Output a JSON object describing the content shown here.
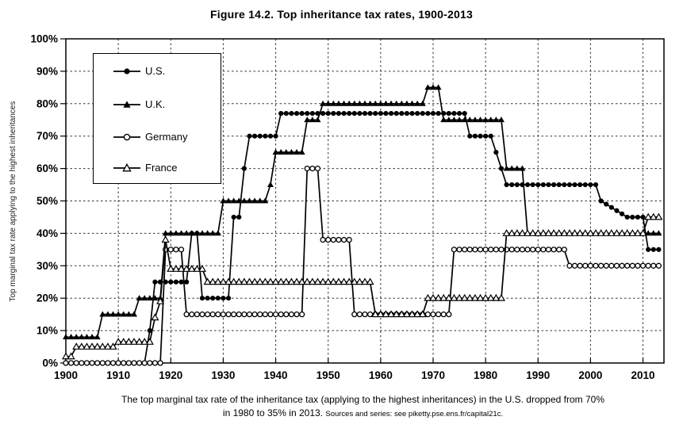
{
  "figure": {
    "title": "Figure 14.2. Top inheritance tax rates, 1900-2013",
    "y_axis_label": "Top marginal tax rate applying to the highest inheritances",
    "caption_line1": "The top marginal tax rate of the inheritance tax (applying to the highest inheritances) in the U.S. dropped from 70%",
    "caption_line2": "in 1980 to 35% in 2013.",
    "caption_source": "Sources and series: see piketty.pse.ens.fr/capital21c."
  },
  "legend": {
    "position": "upper-left",
    "items": [
      {
        "label": "U.S.",
        "marker": "filled-circle"
      },
      {
        "label": "U.K.",
        "marker": "filled-triangle"
      },
      {
        "label": "Germany",
        "marker": "open-circle"
      },
      {
        "label": "France",
        "marker": "open-triangle"
      }
    ]
  },
  "colors": {
    "series": "#000000",
    "grid": "#333333",
    "background": "#ffffff"
  },
  "chart_data": {
    "type": "line",
    "title": "Figure 14.2. Top inheritance tax rates, 1900-2013",
    "xlabel": "",
    "ylabel": "Top marginal tax rate applying to the highest inheritances",
    "x_range": [
      1900,
      2014
    ],
    "y_range": [
      0,
      100
    ],
    "x_ticks": [
      1900,
      1910,
      1920,
      1930,
      1940,
      1950,
      1960,
      1970,
      1980,
      1990,
      2000,
      2010
    ],
    "y_ticks": [
      0,
      10,
      20,
      30,
      40,
      50,
      60,
      70,
      80,
      90,
      100
    ],
    "y_tick_suffix": "%",
    "grid": "dashed horizontal and vertical",
    "series": [
      {
        "name": "U.S.",
        "marker": "filled-circle",
        "segments": [
          [
            1900,
            1915,
            0
          ],
          [
            1916,
            1916,
            10
          ],
          [
            1917,
            1923,
            25
          ],
          [
            1924,
            1925,
            40
          ],
          [
            1926,
            1931,
            20
          ],
          [
            1932,
            1933,
            45
          ],
          [
            1934,
            1934,
            60
          ],
          [
            1935,
            1940,
            70
          ],
          [
            1941,
            1976,
            77
          ],
          [
            1977,
            1981,
            70
          ],
          [
            1982,
            1982,
            65
          ],
          [
            1983,
            1983,
            60
          ],
          [
            1984,
            2001,
            55
          ],
          [
            2002,
            2002,
            50
          ],
          [
            2003,
            2003,
            49
          ],
          [
            2004,
            2004,
            48
          ],
          [
            2005,
            2005,
            47
          ],
          [
            2006,
            2006,
            46
          ],
          [
            2007,
            2010,
            45
          ],
          [
            2011,
            2013,
            35
          ]
        ]
      },
      {
        "name": "U.K.",
        "marker": "filled-triangle",
        "segments": [
          [
            1900,
            1906,
            8
          ],
          [
            1907,
            1913,
            15
          ],
          [
            1914,
            1918,
            20
          ],
          [
            1919,
            1929,
            40
          ],
          [
            1930,
            1938,
            50
          ],
          [
            1939,
            1939,
            55
          ],
          [
            1940,
            1945,
            65
          ],
          [
            1946,
            1948,
            75
          ],
          [
            1949,
            1968,
            80
          ],
          [
            1969,
            1971,
            85
          ],
          [
            1972,
            1983,
            75
          ],
          [
            1984,
            1987,
            60
          ],
          [
            1988,
            2013,
            40
          ]
        ]
      },
      {
        "name": "Germany",
        "marker": "open-circle",
        "segments": [
          [
            1900,
            1918,
            0
          ],
          [
            1919,
            1922,
            35
          ],
          [
            1923,
            1945,
            15
          ],
          [
            1946,
            1948,
            60
          ],
          [
            1949,
            1954,
            38
          ],
          [
            1955,
            1973,
            15
          ],
          [
            1974,
            1995,
            35
          ],
          [
            1996,
            2013,
            30
          ]
        ]
      },
      {
        "name": "France",
        "marker": "open-triangle",
        "segments": [
          [
            1900,
            1901,
            2
          ],
          [
            1902,
            1909,
            5
          ],
          [
            1910,
            1916,
            6.5
          ],
          [
            1917,
            1917,
            14
          ],
          [
            1918,
            1918,
            19
          ],
          [
            1919,
            1919,
            38
          ],
          [
            1920,
            1926,
            29
          ],
          [
            1927,
            1958,
            25
          ],
          [
            1959,
            1968,
            15
          ],
          [
            1969,
            1983,
            20
          ],
          [
            1984,
            2010,
            40
          ],
          [
            2011,
            2013,
            45
          ]
        ]
      }
    ]
  }
}
